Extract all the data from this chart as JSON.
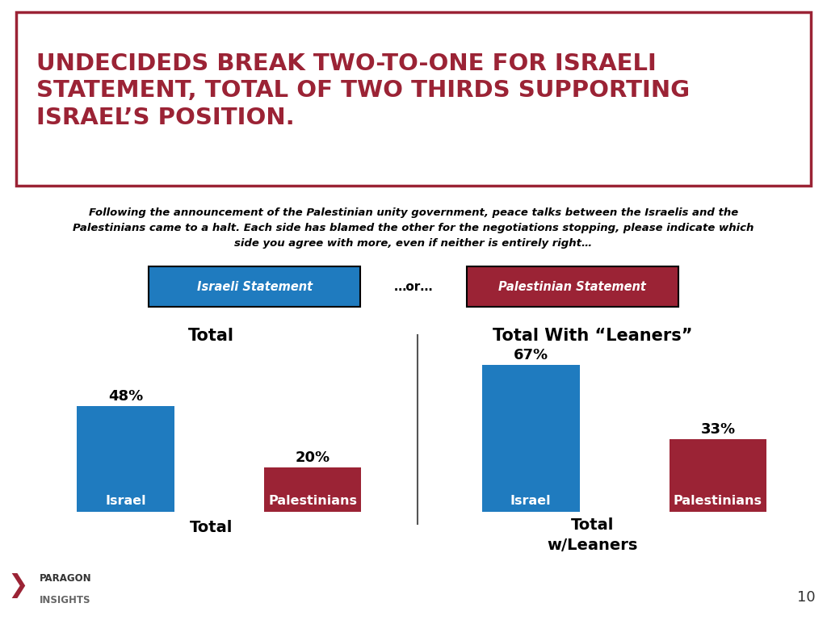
{
  "title": "UNDECIDEDS BREAK TWO-TO-ONE FOR ISRAELI\nSTATEMENT, TOTAL OF TWO THIRDS SUPPORTING\nISRAEL’S POSITION.",
  "subtitle_line1": "Following the announcement of the Palestinian unity government, peace talks between the Israelis and the",
  "subtitle_line2": "Palestinians came to a halt. Each side has blamed the other for the negotiations stopping, please indicate which",
  "subtitle_line3": "side you agree with more, even if neither is entirely right…",
  "legend_label1": "Israeli Statement",
  "legend_label2": "…or…",
  "legend_label3": "Palestinian Statement",
  "chart1_title": "Total",
  "chart1_xlabel": "Total",
  "chart2_title": "Total With “Leaners”",
  "chart2_xlabel": "Total\nw/Leaners",
  "chart1_bars": [
    {
      "label": "Israel",
      "value": 48,
      "color": "#1f7bbf"
    },
    {
      "label": "Palestinians",
      "value": 20,
      "color": "#9b2335"
    }
  ],
  "chart2_bars": [
    {
      "label": "Israel",
      "value": 67,
      "color": "#1f7bbf"
    },
    {
      "label": "Palestinians",
      "value": 33,
      "color": "#9b2335"
    }
  ],
  "title_color": "#9b2335",
  "title_border_color": "#9b2335",
  "value_label_color": "#000000",
  "chart_title_color": "#000000",
  "xlabel_color": "#000000",
  "subtitle_color": "#000000",
  "background_color": "#ffffff",
  "israel_blue": "#1f7bbf",
  "palestinian_red": "#9b2335",
  "divider_color": "#555555",
  "page_num": "10"
}
